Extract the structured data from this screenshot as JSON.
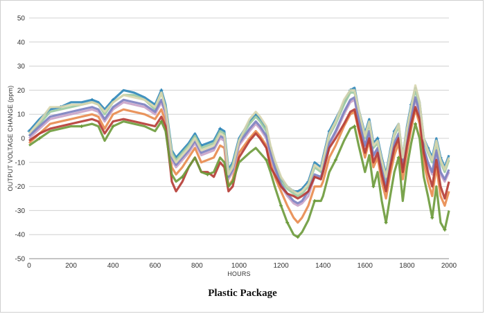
{
  "caption": "Plastic Package",
  "chart_data": {
    "type": "line",
    "title": "",
    "xlabel": "HOURS",
    "ylabel": "OUTPUT VOLTAGE CHANGE (ppm)",
    "xlim": [
      0,
      2000
    ],
    "ylim": [
      -50,
      50
    ],
    "xticks": [
      0,
      200,
      400,
      600,
      800,
      1000,
      1200,
      1400,
      1600,
      1800,
      2000
    ],
    "yticks": [
      -50,
      -40,
      -30,
      -20,
      -10,
      0,
      10,
      20,
      30,
      40,
      50
    ],
    "grid": "horizontal",
    "legend": "none",
    "x": [
      0,
      50,
      100,
      150,
      200,
      250,
      300,
      330,
      360,
      400,
      450,
      500,
      550,
      600,
      630,
      650,
      680,
      700,
      730,
      760,
      790,
      820,
      850,
      880,
      910,
      930,
      950,
      970,
      1000,
      1050,
      1080,
      1100,
      1130,
      1150,
      1170,
      1200,
      1230,
      1260,
      1280,
      1300,
      1330,
      1360,
      1390,
      1400,
      1430,
      1460,
      1500,
      1530,
      1550,
      1570,
      1600,
      1620,
      1640,
      1660,
      1680,
      1700,
      1720,
      1740,
      1760,
      1780,
      1800,
      1820,
      1840,
      1860,
      1880,
      1900,
      1920,
      1940,
      1960,
      1980,
      2000
    ],
    "series": [
      {
        "color": "#2e86b8",
        "values": [
          3,
          8,
          12,
          13,
          15,
          15,
          16,
          15,
          12,
          16,
          20,
          19,
          17,
          14,
          20,
          14,
          -5,
          -8,
          -5,
          -2,
          2,
          -3,
          -2,
          -1,
          4,
          3,
          -13,
          -10,
          0,
          7,
          10,
          8,
          4,
          -4,
          -10,
          -17,
          -20,
          -22,
          -22,
          -21,
          -18,
          -10,
          -12,
          -8,
          3,
          8,
          15,
          20,
          21,
          12,
          2,
          8,
          -2,
          0,
          -8,
          -15,
          -5,
          3,
          6,
          -8,
          5,
          14,
          21,
          15,
          0,
          -4,
          -8,
          0,
          -8,
          -12,
          -7
        ],
        "markers": [
          0,
          3,
          6,
          9,
          13,
          14,
          17,
          21,
          24,
          26,
          30,
          33,
          37,
          40,
          44,
          47,
          50,
          53,
          57,
          61,
          65,
          68
        ]
      },
      {
        "color": "#9bc9a1",
        "values": [
          1,
          6,
          11,
          12,
          13,
          14,
          15,
          14,
          10,
          15,
          18,
          18,
          16,
          12,
          19,
          13,
          -6,
          -9,
          -6,
          -3,
          1,
          -4,
          -3,
          -2,
          3,
          2,
          -14,
          -11,
          -1,
          6,
          9,
          7,
          3,
          -5,
          -11,
          -18,
          -21,
          -23,
          -24,
          -23,
          -20,
          -12,
          -14,
          -10,
          1,
          6,
          14,
          19,
          19,
          11,
          0,
          6,
          -4,
          -2,
          -10,
          -17,
          -7,
          1,
          5,
          -9,
          3,
          12,
          20,
          14,
          -1,
          -6,
          -10,
          -2,
          -10,
          -14,
          -9
        ],
        "markers": []
      },
      {
        "color": "#e88a4c",
        "values": [
          -2,
          2,
          6,
          7,
          8,
          9,
          10,
          9,
          4,
          10,
          12,
          11,
          10,
          8,
          12,
          7,
          -12,
          -15,
          -12,
          -8,
          -4,
          -10,
          -9,
          -8,
          -3,
          -4,
          -20,
          -17,
          -6,
          0,
          3,
          1,
          -3,
          -10,
          -16,
          -22,
          -28,
          -33,
          -35,
          -33,
          -28,
          -20,
          -20,
          -18,
          -8,
          -3,
          5,
          10,
          11,
          3,
          -8,
          -1,
          -12,
          -8,
          -18,
          -25,
          -15,
          -7,
          -2,
          -17,
          -6,
          4,
          12,
          6,
          -10,
          -18,
          -24,
          -12,
          -24,
          -28,
          -22
        ],
        "markers": []
      },
      {
        "color": "#c8a2c8",
        "values": [
          0,
          4,
          8,
          9,
          10,
          11,
          12,
          11,
          7,
          12,
          15,
          14,
          13,
          10,
          15,
          10,
          -9,
          -12,
          -9,
          -6,
          -2,
          -7,
          -6,
          -5,
          0,
          -1,
          -17,
          -14,
          -3,
          3,
          6,
          4,
          0,
          -7,
          -13,
          -20,
          -24,
          -27,
          -28,
          -27,
          -24,
          -16,
          -17,
          -14,
          -3,
          2,
          10,
          15,
          16,
          7,
          -4,
          2,
          -8,
          -5,
          -14,
          -21,
          -11,
          -3,
          1,
          -13,
          -2,
          8,
          16,
          10,
          -5,
          -11,
          -15,
          -6,
          -15,
          -18,
          -14
        ],
        "markers": []
      },
      {
        "color": "#7b7fc0",
        "values": [
          1,
          5,
          9,
          10,
          11,
          12,
          13,
          12,
          8,
          13,
          16,
          15,
          14,
          11,
          16,
          11,
          -8,
          -11,
          -8,
          -5,
          -1,
          -6,
          -5,
          -4,
          1,
          0,
          -16,
          -13,
          -2,
          4,
          7,
          5,
          1,
          -6,
          -12,
          -19,
          -23,
          -26,
          -27,
          -26,
          -22,
          -15,
          -16,
          -13,
          -2,
          3,
          11,
          16,
          17,
          8,
          -3,
          3,
          -7,
          -4,
          -13,
          -20,
          -10,
          -2,
          2,
          -12,
          -1,
          9,
          17,
          11,
          -4,
          -10,
          -14,
          -5,
          -14,
          -17,
          -13
        ],
        "markers": []
      },
      {
        "color": "#b53a33",
        "values": [
          -1,
          2,
          4,
          5,
          6,
          7,
          8,
          7,
          2,
          7,
          8,
          7,
          6,
          5,
          9,
          5,
          -18,
          -22,
          -18,
          -12,
          -8,
          -14,
          -14,
          -16,
          -10,
          -12,
          -22,
          -20,
          -8,
          -1,
          2,
          0,
          -4,
          -12,
          -15,
          -20,
          -23,
          -24,
          -25,
          -24,
          -22,
          -16,
          -17,
          -14,
          -4,
          0,
          6,
          11,
          12,
          4,
          -6,
          0,
          -10,
          -6,
          -15,
          -22,
          -12,
          -4,
          0,
          -14,
          -3,
          6,
          13,
          8,
          -6,
          -14,
          -20,
          -9,
          -20,
          -25,
          -18
        ],
        "markers": []
      },
      {
        "color": "#6b9a3a",
        "values": [
          -3,
          0,
          3,
          4,
          5,
          5,
          6,
          5,
          -1,
          5,
          7,
          6,
          5,
          3,
          7,
          3,
          -15,
          -18,
          -16,
          -12,
          -8,
          -14,
          -15,
          -14,
          -8,
          -10,
          -20,
          -18,
          -10,
          -6,
          -4,
          -6,
          -9,
          -14,
          -20,
          -28,
          -35,
          -40,
          -41,
          -39,
          -34,
          -26,
          -26,
          -24,
          -14,
          -9,
          -1,
          4,
          5,
          -3,
          -14,
          -7,
          -20,
          -14,
          -26,
          -35,
          -24,
          -14,
          -8,
          -26,
          -12,
          -2,
          6,
          0,
          -16,
          -24,
          -33,
          -20,
          -35,
          -38,
          -30
        ],
        "markers": [
          1,
          5,
          9,
          14,
          18,
          22,
          27,
          32,
          35,
          36,
          38,
          41,
          45,
          48,
          52,
          55,
          58,
          62,
          66,
          69
        ]
      },
      {
        "color": "#d8d6ae",
        "values": [
          2,
          7,
          13,
          13,
          14,
          14,
          15,
          14,
          11,
          15,
          18,
          17,
          16,
          13,
          19,
          12,
          -7,
          -10,
          -7,
          -4,
          0,
          -5,
          -4,
          -3,
          2,
          1,
          -15,
          -12,
          -1,
          8,
          11,
          9,
          5,
          -3,
          -9,
          -16,
          -20,
          -22,
          -23,
          -22,
          -19,
          -11,
          -13,
          -9,
          2,
          7,
          16,
          20,
          20,
          12,
          1,
          7,
          -3,
          -1,
          -9,
          -16,
          -6,
          2,
          6,
          -8,
          4,
          13,
          22,
          15,
          0,
          -5,
          -9,
          -1,
          -9,
          -13,
          -8
        ],
        "markers": []
      }
    ]
  }
}
